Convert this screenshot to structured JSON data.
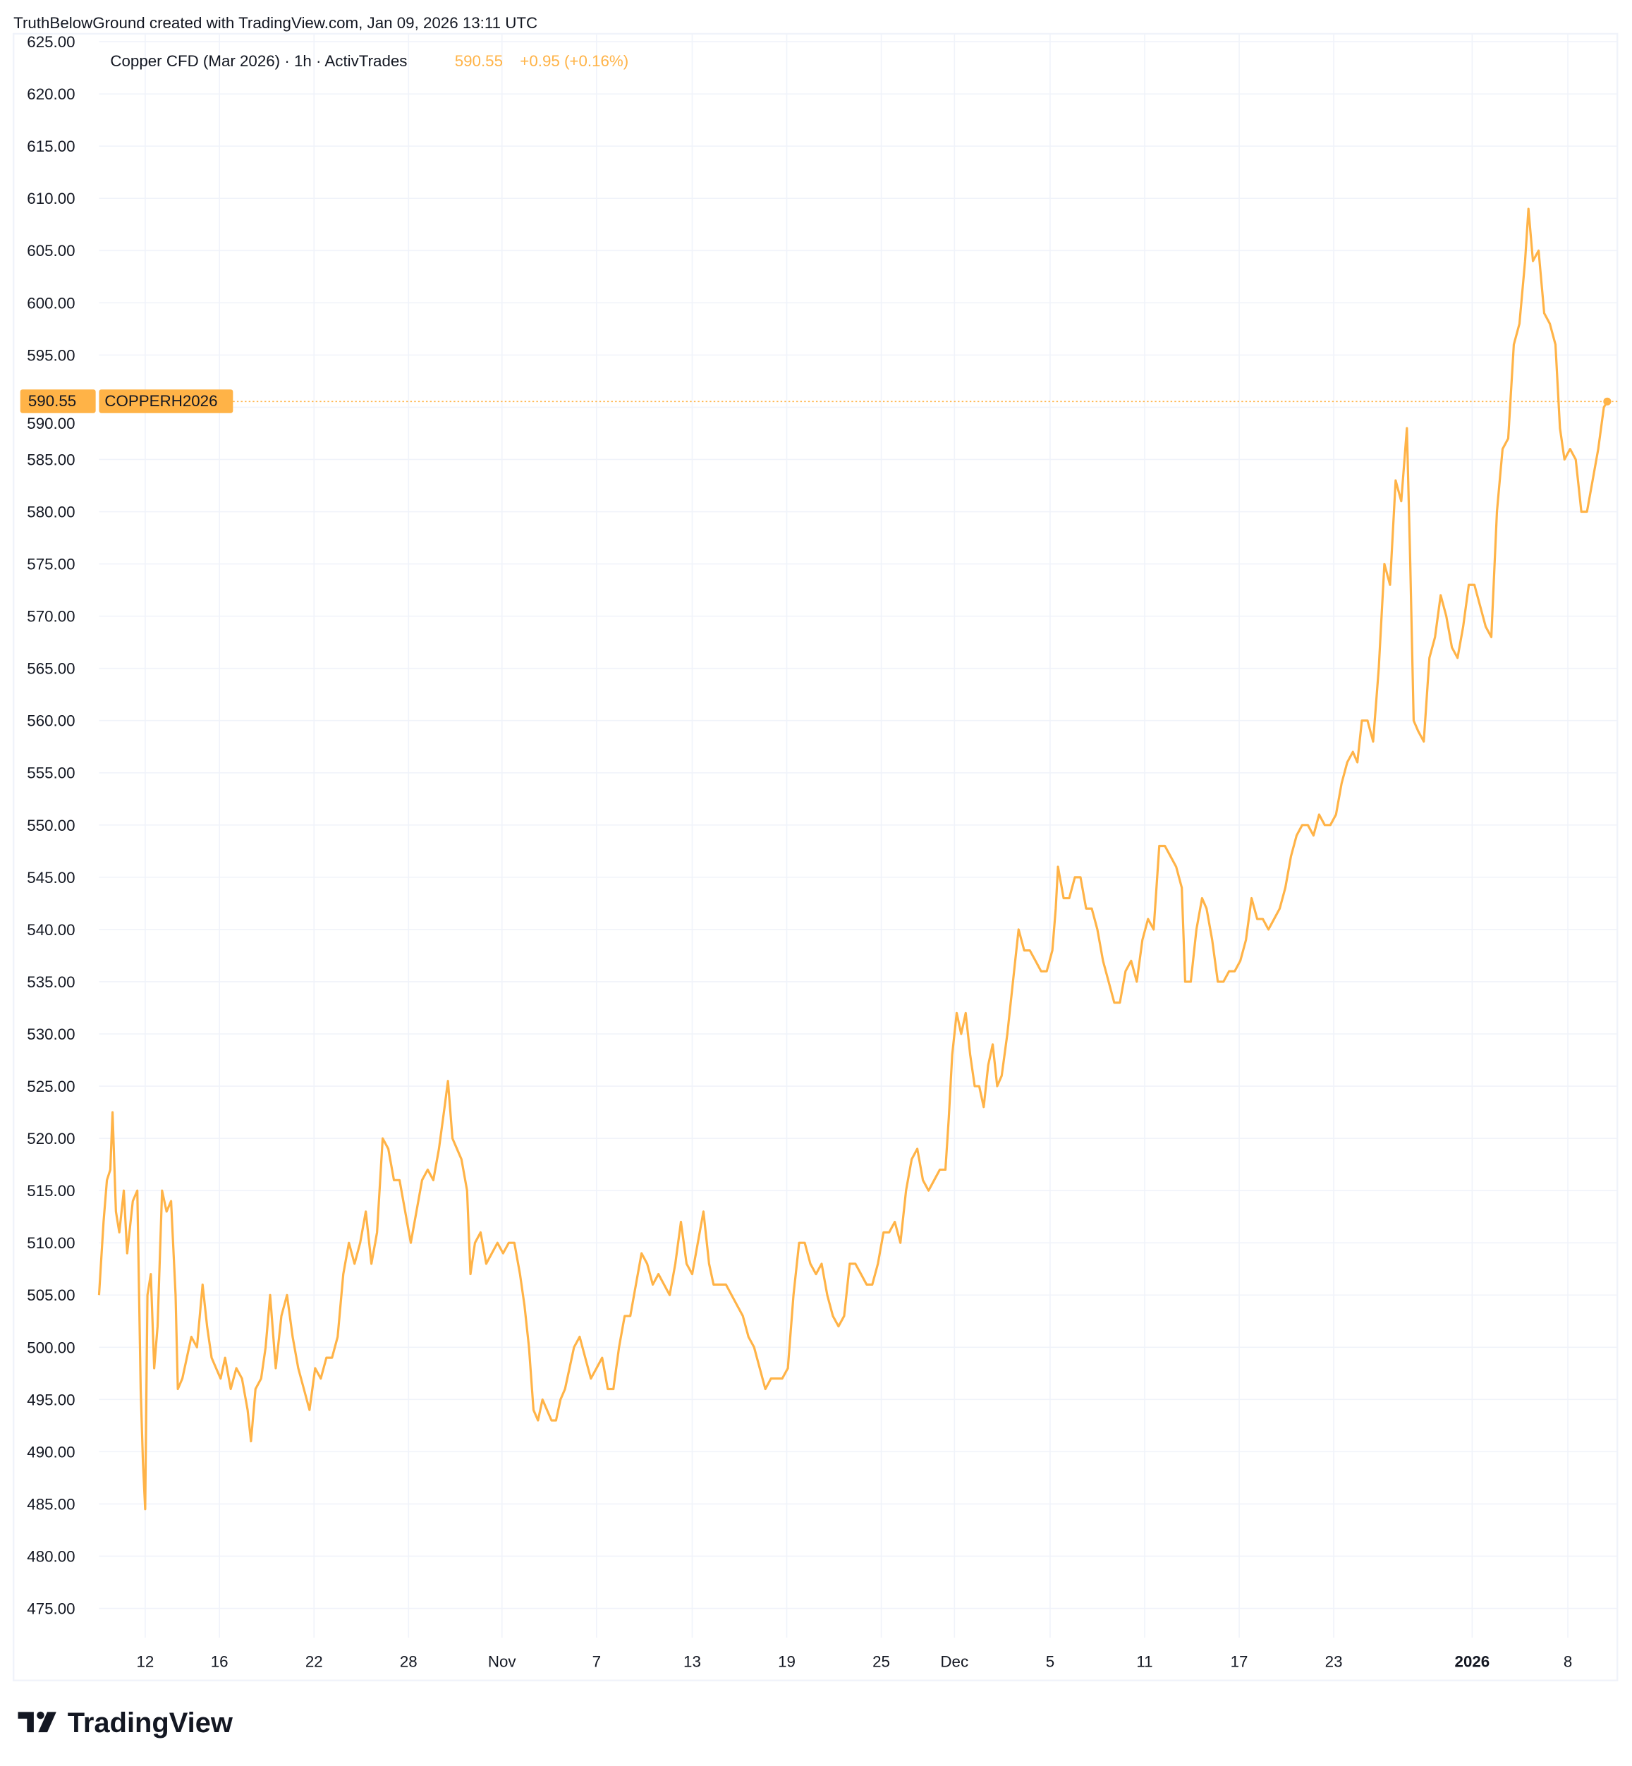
{
  "header": {
    "attribution": "TruthBelowGround created with TradingView.com, Jan 09, 2026 13:11 UTC"
  },
  "legend": {
    "symbol_description": "Copper CFD (Mar 2026) · 1h · ActivTrades",
    "last_price": "590.55",
    "change": "+0.95 (+0.16%)"
  },
  "price_label": {
    "value": "590.55",
    "symbol": "COPPERH2026"
  },
  "footer": {
    "logo_text": "TradingView"
  },
  "colors": {
    "line": "#FFB347",
    "label_bg": "#FFB347",
    "grid": "#F0F3FA",
    "text": "#131722"
  },
  "chart_data": {
    "type": "line",
    "title": "Copper CFD (Mar 2026) · 1h · ActivTrades",
    "xlabel": "",
    "ylabel": "",
    "ylim": [
      475,
      625
    ],
    "xlim": [
      0,
      134
    ],
    "grid": true,
    "y_ticks": [
      "625.00",
      "620.00",
      "615.00",
      "610.00",
      "605.00",
      "600.00",
      "595.00",
      "590.00",
      "585.00",
      "580.00",
      "575.00",
      "570.00",
      "565.00",
      "560.00",
      "555.00",
      "550.00",
      "545.00",
      "540.00",
      "535.00",
      "530.00",
      "525.00",
      "520.00",
      "515.00",
      "510.00",
      "505.00",
      "500.00",
      "495.00",
      "490.00",
      "485.00",
      "480.00",
      "475.00"
    ],
    "x_ticks": [
      {
        "label": "12",
        "t": 4.1,
        "bold": false
      },
      {
        "label": "16",
        "t": 10.7,
        "bold": false
      },
      {
        "label": "22",
        "t": 19.1,
        "bold": false
      },
      {
        "label": "28",
        "t": 27.5,
        "bold": false
      },
      {
        "label": "Nov",
        "t": 35.8,
        "bold": false
      },
      {
        "label": "7",
        "t": 44.2,
        "bold": false
      },
      {
        "label": "13",
        "t": 52.7,
        "bold": false
      },
      {
        "label": "19",
        "t": 61.1,
        "bold": false
      },
      {
        "label": "25",
        "t": 69.5,
        "bold": false
      },
      {
        "label": "Dec",
        "t": 76.0,
        "bold": false
      },
      {
        "label": "5",
        "t": 84.5,
        "bold": false
      },
      {
        "label": "11",
        "t": 92.9,
        "bold": false
      },
      {
        "label": "17",
        "t": 101.3,
        "bold": false
      },
      {
        "label": "23",
        "t": 109.7,
        "bold": false
      },
      {
        "label": "2026",
        "t": 122.0,
        "bold": true
      },
      {
        "label": "8",
        "t": 130.5,
        "bold": false
      }
    ],
    "series": [
      {
        "name": "COPPERH2026",
        "points": [
          [
            0,
            505
          ],
          [
            0.4,
            512
          ],
          [
            0.7,
            516
          ],
          [
            1,
            517
          ],
          [
            1.2,
            522.5
          ],
          [
            1.5,
            513
          ],
          [
            1.8,
            511
          ],
          [
            2.2,
            515
          ],
          [
            2.5,
            509
          ],
          [
            3,
            514
          ],
          [
            3.4,
            515
          ],
          [
            3.7,
            496
          ],
          [
            3.9,
            489
          ],
          [
            4.1,
            484.5
          ],
          [
            4.3,
            505
          ],
          [
            4.6,
            507
          ],
          [
            4.9,
            498
          ],
          [
            5.2,
            502
          ],
          [
            5.6,
            515
          ],
          [
            6,
            513
          ],
          [
            6.4,
            514
          ],
          [
            6.8,
            505
          ],
          [
            7,
            496
          ],
          [
            7.4,
            497
          ],
          [
            7.8,
            499
          ],
          [
            8.2,
            501
          ],
          [
            8.7,
            500
          ],
          [
            9.2,
            506
          ],
          [
            9.6,
            502
          ],
          [
            10,
            499
          ],
          [
            10.4,
            498
          ],
          [
            10.8,
            497
          ],
          [
            11.2,
            499
          ],
          [
            11.7,
            496
          ],
          [
            12.2,
            498
          ],
          [
            12.7,
            497
          ],
          [
            13.2,
            494
          ],
          [
            13.5,
            491
          ],
          [
            13.9,
            496
          ],
          [
            14.4,
            497
          ],
          [
            14.8,
            500
          ],
          [
            15.2,
            505
          ],
          [
            15.7,
            498
          ],
          [
            16.2,
            503
          ],
          [
            16.7,
            505
          ],
          [
            17.2,
            501
          ],
          [
            17.7,
            498
          ],
          [
            18.2,
            496
          ],
          [
            18.7,
            494
          ],
          [
            19.2,
            498
          ],
          [
            19.7,
            497
          ],
          [
            20.2,
            499
          ],
          [
            20.7,
            499
          ],
          [
            21.2,
            501
          ],
          [
            21.7,
            507
          ],
          [
            22.2,
            510
          ],
          [
            22.7,
            508
          ],
          [
            23.2,
            510
          ],
          [
            23.7,
            513
          ],
          [
            24.2,
            508
          ],
          [
            24.7,
            511
          ],
          [
            25.2,
            520
          ],
          [
            25.7,
            519
          ],
          [
            26.2,
            516
          ],
          [
            26.7,
            516
          ],
          [
            27.2,
            513
          ],
          [
            27.7,
            510
          ],
          [
            28.2,
            513
          ],
          [
            28.7,
            516
          ],
          [
            29.2,
            517
          ],
          [
            29.7,
            516
          ],
          [
            30.2,
            519
          ],
          [
            30.7,
            523
          ],
          [
            31,
            525.5
          ],
          [
            31.4,
            520
          ],
          [
            31.8,
            519
          ],
          [
            32.2,
            518
          ],
          [
            32.7,
            515
          ],
          [
            33,
            507
          ],
          [
            33.4,
            510
          ],
          [
            33.9,
            511
          ],
          [
            34.4,
            508
          ],
          [
            34.9,
            509
          ],
          [
            35.4,
            510
          ],
          [
            35.9,
            509
          ],
          [
            36.4,
            510
          ],
          [
            36.9,
            510
          ],
          [
            37.4,
            507
          ],
          [
            37.8,
            504
          ],
          [
            38.2,
            500
          ],
          [
            38.6,
            494
          ],
          [
            39,
            493
          ],
          [
            39.4,
            495
          ],
          [
            39.8,
            494
          ],
          [
            40.2,
            493
          ],
          [
            40.6,
            493
          ],
          [
            41,
            495
          ],
          [
            41.4,
            496
          ],
          [
            41.8,
            498
          ],
          [
            42.2,
            500
          ],
          [
            42.7,
            501
          ],
          [
            43.2,
            499
          ],
          [
            43.7,
            497
          ],
          [
            44.2,
            498
          ],
          [
            44.7,
            499
          ],
          [
            45.2,
            496
          ],
          [
            45.7,
            496
          ],
          [
            46.2,
            500
          ],
          [
            46.7,
            503
          ],
          [
            47.2,
            503
          ],
          [
            47.7,
            506
          ],
          [
            48.2,
            509
          ],
          [
            48.7,
            508
          ],
          [
            49.2,
            506
          ],
          [
            49.7,
            507
          ],
          [
            50.2,
            506
          ],
          [
            50.7,
            505
          ],
          [
            51.2,
            508
          ],
          [
            51.7,
            512
          ],
          [
            52.2,
            508
          ],
          [
            52.7,
            507
          ],
          [
            53.2,
            510
          ],
          [
            53.7,
            513
          ],
          [
            54.2,
            508
          ],
          [
            54.6,
            506
          ],
          [
            55.2,
            506
          ],
          [
            55.7,
            506
          ],
          [
            56.2,
            505
          ],
          [
            56.7,
            504
          ],
          [
            57.2,
            503
          ],
          [
            57.7,
            501
          ],
          [
            58.2,
            500
          ],
          [
            58.7,
            498
          ],
          [
            59.2,
            496
          ],
          [
            59.7,
            497
          ],
          [
            60.2,
            497
          ],
          [
            60.7,
            497
          ],
          [
            61.2,
            498
          ],
          [
            61.7,
            505
          ],
          [
            62.2,
            510
          ],
          [
            62.7,
            510
          ],
          [
            63.2,
            508
          ],
          [
            63.7,
            507
          ],
          [
            64.2,
            508
          ],
          [
            64.7,
            505
          ],
          [
            65.2,
            503
          ],
          [
            65.7,
            502
          ],
          [
            66.2,
            503
          ],
          [
            66.7,
            508
          ],
          [
            67.2,
            508
          ],
          [
            67.7,
            507
          ],
          [
            68.2,
            506
          ],
          [
            68.7,
            506
          ],
          [
            69.2,
            508
          ],
          [
            69.7,
            511
          ],
          [
            70.2,
            511
          ],
          [
            70.7,
            512
          ],
          [
            71.2,
            510
          ],
          [
            71.7,
            515
          ],
          [
            72.2,
            518
          ],
          [
            72.7,
            519
          ],
          [
            73.2,
            516
          ],
          [
            73.7,
            515
          ],
          [
            74.2,
            516
          ],
          [
            74.7,
            517
          ],
          [
            75.2,
            517
          ],
          [
            75.5,
            522
          ],
          [
            75.8,
            528
          ],
          [
            76.2,
            532
          ],
          [
            76.6,
            530
          ],
          [
            77,
            532
          ],
          [
            77.4,
            528
          ],
          [
            77.8,
            525
          ],
          [
            78.2,
            525
          ],
          [
            78.6,
            523
          ],
          [
            79,
            527
          ],
          [
            79.4,
            529
          ],
          [
            79.8,
            525
          ],
          [
            80.2,
            526
          ],
          [
            80.7,
            530
          ],
          [
            81.2,
            535
          ],
          [
            81.7,
            540
          ],
          [
            82.2,
            538
          ],
          [
            82.7,
            538
          ],
          [
            83.2,
            537
          ],
          [
            83.7,
            536
          ],
          [
            84.2,
            536
          ],
          [
            84.7,
            538
          ],
          [
            85,
            542
          ],
          [
            85.2,
            546
          ],
          [
            85.7,
            543
          ],
          [
            86.2,
            543
          ],
          [
            86.7,
            545
          ],
          [
            87.2,
            545
          ],
          [
            87.7,
            542
          ],
          [
            88.2,
            542
          ],
          [
            88.7,
            540
          ],
          [
            89.2,
            537
          ],
          [
            89.7,
            535
          ],
          [
            90.2,
            533
          ],
          [
            90.7,
            533
          ],
          [
            91.2,
            536
          ],
          [
            91.7,
            537
          ],
          [
            92.2,
            535
          ],
          [
            92.7,
            539
          ],
          [
            93.2,
            541
          ],
          [
            93.7,
            540
          ],
          [
            94.2,
            548
          ],
          [
            94.7,
            548
          ],
          [
            95.2,
            547
          ],
          [
            95.7,
            546
          ],
          [
            96.2,
            544
          ],
          [
            96.5,
            535
          ],
          [
            97,
            535
          ],
          [
            97.5,
            540
          ],
          [
            98,
            543
          ],
          [
            98.4,
            542
          ],
          [
            98.9,
            539
          ],
          [
            99.4,
            535
          ],
          [
            99.9,
            535
          ],
          [
            100.4,
            536
          ],
          [
            100.9,
            536
          ],
          [
            101.4,
            537
          ],
          [
            101.9,
            539
          ],
          [
            102.4,
            543
          ],
          [
            102.9,
            541
          ],
          [
            103.4,
            541
          ],
          [
            103.9,
            540
          ],
          [
            104.4,
            541
          ],
          [
            104.9,
            542
          ],
          [
            105.4,
            544
          ],
          [
            105.9,
            547
          ],
          [
            106.4,
            549
          ],
          [
            106.9,
            550
          ],
          [
            107.4,
            550
          ],
          [
            107.9,
            549
          ],
          [
            108.4,
            551
          ],
          [
            108.9,
            550
          ],
          [
            109.4,
            550
          ],
          [
            109.9,
            551
          ],
          [
            110.4,
            554
          ],
          [
            110.9,
            556
          ],
          [
            111.4,
            557
          ],
          [
            111.8,
            556
          ],
          [
            112.2,
            560
          ],
          [
            112.7,
            560
          ],
          [
            113.2,
            558
          ],
          [
            113.7,
            565
          ],
          [
            114.2,
            575
          ],
          [
            114.7,
            573
          ],
          [
            115.2,
            583
          ],
          [
            115.7,
            581
          ],
          [
            116.2,
            588
          ],
          [
            116.5,
            575
          ],
          [
            116.8,
            560
          ],
          [
            117.2,
            559
          ],
          [
            117.7,
            558
          ],
          [
            118.2,
            566
          ],
          [
            118.7,
            568
          ],
          [
            119.2,
            572
          ],
          [
            119.7,
            570
          ],
          [
            120.2,
            567
          ],
          [
            120.7,
            566
          ],
          [
            121.2,
            569
          ],
          [
            121.7,
            573
          ],
          [
            122.2,
            573
          ],
          [
            122.7,
            571
          ],
          [
            123.2,
            569
          ],
          [
            123.7,
            568
          ],
          [
            124.2,
            580
          ],
          [
            124.7,
            586
          ],
          [
            125.2,
            587
          ],
          [
            125.7,
            596
          ],
          [
            126.2,
            598
          ],
          [
            126.7,
            604
          ],
          [
            127,
            609
          ],
          [
            127.4,
            604
          ],
          [
            127.9,
            605
          ],
          [
            128.4,
            599
          ],
          [
            128.9,
            598
          ],
          [
            129.4,
            596
          ],
          [
            129.8,
            588
          ],
          [
            130.2,
            585
          ],
          [
            130.7,
            586
          ],
          [
            131.2,
            585
          ],
          [
            131.7,
            580
          ],
          [
            132.2,
            580
          ],
          [
            132.7,
            583
          ],
          [
            133.2,
            586
          ],
          [
            133.7,
            590
          ],
          [
            134,
            590.55
          ]
        ]
      }
    ],
    "current_value": 590.55
  }
}
